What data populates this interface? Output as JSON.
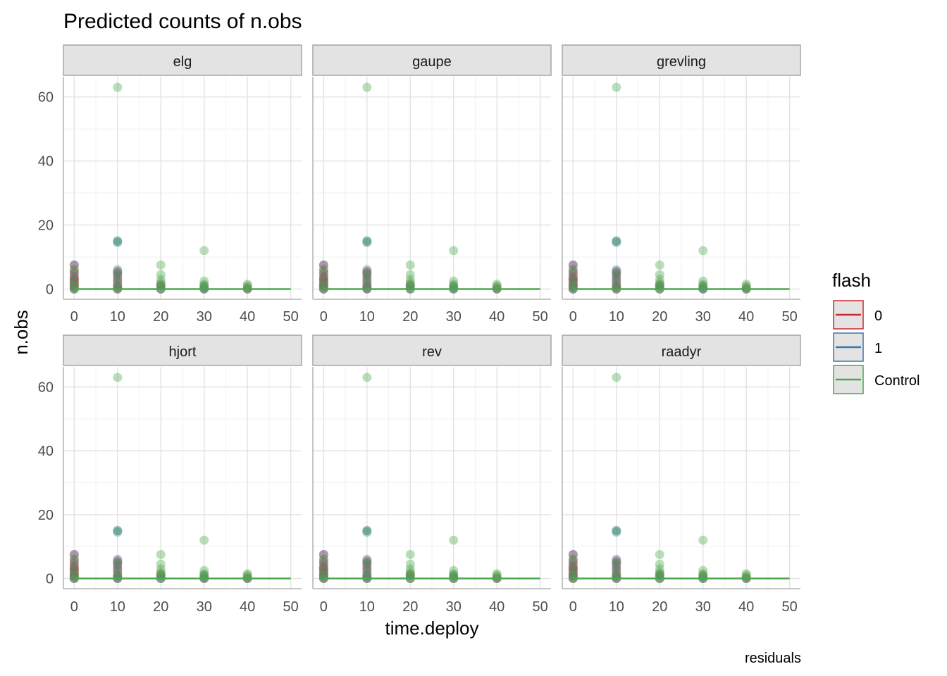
{
  "chart_data": {
    "type": "scatter",
    "title": "Predicted counts of n.obs",
    "xlabel": "time.deploy",
    "ylabel": "n.obs",
    "caption": "residuals",
    "xlim": [
      -2.5,
      52.5
    ],
    "ylim": [
      -3.2,
      66.3
    ],
    "x_ticks": [
      "0",
      "10",
      "20",
      "30",
      "40",
      "50"
    ],
    "y_ticks": [
      "0",
      "20",
      "40",
      "60"
    ],
    "x_tick_values": [
      0,
      10,
      20,
      30,
      40,
      50
    ],
    "y_tick_values": [
      0,
      20,
      40,
      60
    ],
    "grid": true,
    "legend": {
      "title": "flash",
      "position": "right",
      "entries": [
        {
          "label": "0",
          "color": "#cc2a2f"
        },
        {
          "label": "1",
          "color": "#3d77a8"
        },
        {
          "label": "Control",
          "color": "#4aa84a"
        }
      ]
    },
    "fit_line": {
      "x": [
        0,
        50
      ],
      "y": [
        0,
        0
      ],
      "color": "#4aa84a"
    },
    "panels": [
      {
        "name": "elg"
      },
      {
        "name": "gaupe"
      },
      {
        "name": "grevling"
      },
      {
        "name": "hjort"
      },
      {
        "name": "rev"
      },
      {
        "name": "raadyr"
      }
    ],
    "series": [
      {
        "name": "0",
        "color": "#cc2a2f",
        "points": [
          [
            0,
            7.5
          ],
          [
            0,
            6
          ],
          [
            0,
            5
          ],
          [
            0,
            4
          ],
          [
            0,
            3.5
          ],
          [
            0,
            3
          ],
          [
            0,
            2.5
          ],
          [
            0,
            2
          ],
          [
            0,
            1.5
          ],
          [
            0,
            1
          ],
          [
            0,
            0.5
          ],
          [
            0,
            0
          ],
          [
            10,
            5.5
          ],
          [
            10,
            5
          ],
          [
            10,
            4
          ],
          [
            10,
            3
          ],
          [
            10,
            2
          ],
          [
            10,
            1
          ],
          [
            10,
            0.5
          ],
          [
            10,
            0
          ],
          [
            20,
            1.5
          ],
          [
            20,
            1
          ],
          [
            20,
            0
          ],
          [
            30,
            1
          ],
          [
            30,
            0
          ],
          [
            40,
            0.5
          ],
          [
            40,
            0
          ]
        ]
      },
      {
        "name": "1",
        "color": "#3d77a8",
        "points": [
          [
            0,
            7.5
          ],
          [
            0,
            5
          ],
          [
            0,
            3
          ],
          [
            0,
            1
          ],
          [
            0,
            0
          ],
          [
            10,
            15
          ],
          [
            10,
            14.5
          ],
          [
            10,
            6
          ],
          [
            10,
            4.5
          ],
          [
            10,
            3
          ],
          [
            10,
            1
          ],
          [
            10,
            0
          ],
          [
            20,
            1
          ],
          [
            20,
            0
          ],
          [
            30,
            0.5
          ],
          [
            30,
            0
          ],
          [
            40,
            0
          ]
        ]
      },
      {
        "name": "Control",
        "color": "#4aa84a",
        "points": [
          [
            0,
            6
          ],
          [
            0,
            3
          ],
          [
            0,
            1
          ],
          [
            0,
            0
          ],
          [
            10,
            63
          ],
          [
            10,
            15
          ],
          [
            10,
            5
          ],
          [
            10,
            2
          ],
          [
            10,
            0
          ],
          [
            20,
            7.5
          ],
          [
            20,
            4.5
          ],
          [
            20,
            3
          ],
          [
            20,
            2
          ],
          [
            20,
            1
          ],
          [
            20,
            0
          ],
          [
            30,
            12
          ],
          [
            30,
            2.5
          ],
          [
            30,
            1.5
          ],
          [
            30,
            1
          ],
          [
            30,
            0
          ],
          [
            40,
            1.5
          ],
          [
            40,
            1
          ],
          [
            40,
            0
          ]
        ]
      }
    ]
  }
}
